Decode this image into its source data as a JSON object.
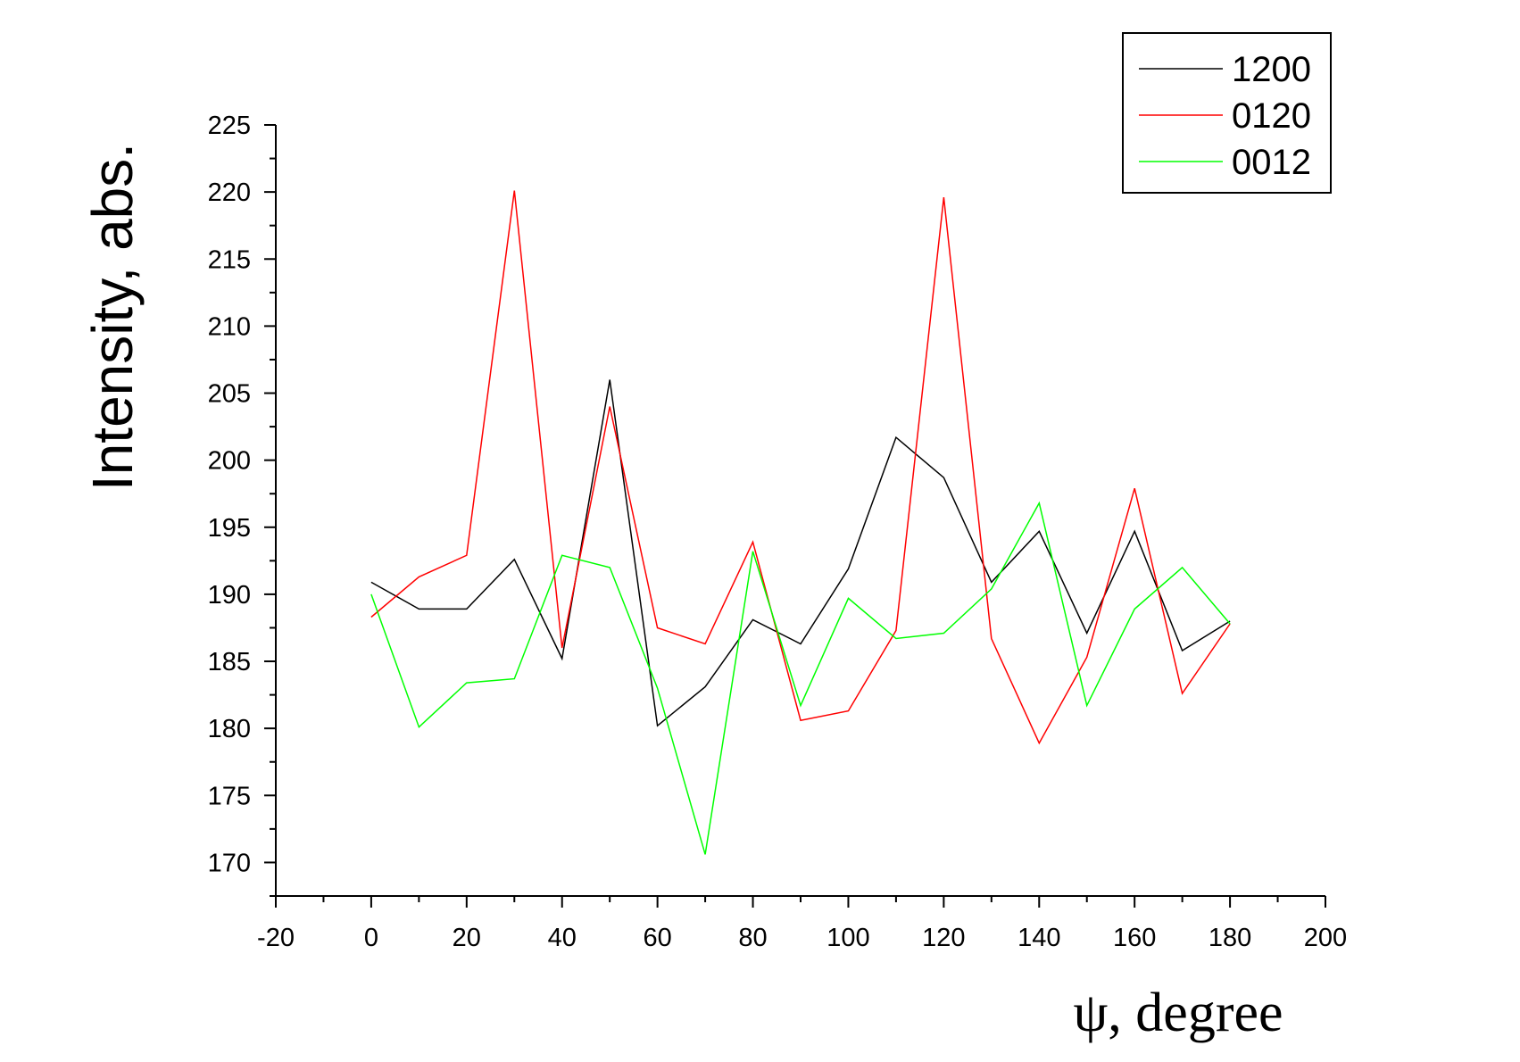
{
  "chart_data": {
    "type": "line",
    "xlabel": "ψ, degree",
    "ylabel": "Intensity, abs.",
    "xlim": [
      -20,
      200
    ],
    "ylim": [
      167.5,
      225
    ],
    "x_ticks": [
      -20,
      0,
      20,
      40,
      60,
      80,
      100,
      120,
      140,
      160,
      180,
      200
    ],
    "y_ticks": [
      170,
      175,
      180,
      185,
      190,
      195,
      200,
      205,
      210,
      215,
      220,
      225
    ],
    "grid": false,
    "legend_position": "top-right",
    "x": [
      0,
      10,
      20,
      30,
      40,
      50,
      60,
      70,
      80,
      90,
      100,
      110,
      120,
      130,
      140,
      150,
      160,
      170,
      180
    ],
    "series": [
      {
        "name": "1200",
        "color": "#000000",
        "values": [
          190.9,
          188.9,
          188.9,
          192.6,
          185.2,
          206.0,
          180.2,
          183.1,
          188.1,
          186.3,
          191.9,
          201.7,
          198.7,
          190.9,
          194.7,
          187.1,
          194.7,
          185.8,
          188.0
        ]
      },
      {
        "name": "0120",
        "color": "#ff0000",
        "values": [
          188.3,
          191.3,
          192.9,
          220.1,
          186.0,
          204.0,
          187.5,
          186.3,
          193.9,
          180.6,
          181.3,
          187.3,
          219.6,
          186.7,
          178.9,
          185.3,
          197.9,
          182.6,
          187.8
        ]
      },
      {
        "name": "0012",
        "color": "#00ff00",
        "values": [
          190.0,
          180.1,
          183.4,
          183.7,
          192.9,
          192.0,
          183.0,
          170.6,
          193.2,
          181.7,
          189.7,
          186.7,
          187.1,
          190.4,
          196.8,
          181.7,
          188.9,
          192.0,
          187.8
        ]
      }
    ]
  }
}
